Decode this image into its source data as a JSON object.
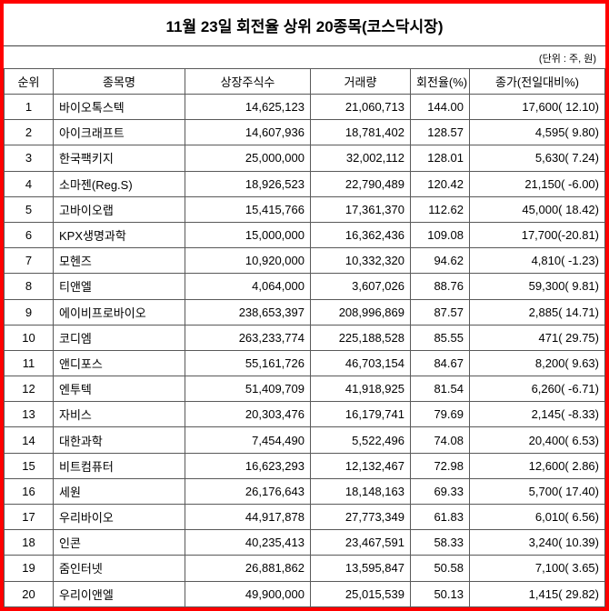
{
  "title": "11월 23일 회전율 상위 20종목(코스닥시장)",
  "unit_note": "(단위 : 주, 원)",
  "colors": {
    "frame_border": "#ff0000",
    "grid_line": "#595959",
    "text": "#000000",
    "background": "#ffffff"
  },
  "chart_data": {
    "type": "table",
    "title": "11월 23일 회전율 상위 20종목(코스닥시장)",
    "unit_note": "(단위 : 주, 원)",
    "columns": [
      "순위",
      "종목명",
      "상장주식수",
      "거래량",
      "회전율(%)",
      "종가(전일대비%)"
    ],
    "rows": [
      [
        "1",
        "바이오톡스텍",
        "14,625,123",
        "21,060,713",
        "144.00",
        "17,600( 12.10)"
      ],
      [
        "2",
        "아이크래프트",
        "14,607,936",
        "18,781,402",
        "128.57",
        "4,595( 9.80)"
      ],
      [
        "3",
        "한국팩키지",
        "25,000,000",
        "32,002,112",
        "128.01",
        "5,630( 7.24)"
      ],
      [
        "4",
        "소마젠(Reg.S)",
        "18,926,523",
        "22,790,489",
        "120.42",
        "21,150( -6.00)"
      ],
      [
        "5",
        "고바이오랩",
        "15,415,766",
        "17,361,370",
        "112.62",
        "45,000( 18.42)"
      ],
      [
        "6",
        "KPX생명과학",
        "15,000,000",
        "16,362,436",
        "109.08",
        "17,700(-20.81)"
      ],
      [
        "7",
        "모헨즈",
        "10,920,000",
        "10,332,320",
        "94.62",
        "4,810( -1.23)"
      ],
      [
        "8",
        "티앤엘",
        "4,064,000",
        "3,607,026",
        "88.76",
        "59,300( 9.81)"
      ],
      [
        "9",
        "에이비프로바이오",
        "238,653,397",
        "208,996,869",
        "87.57",
        "2,885( 14.71)"
      ],
      [
        "10",
        "코디엠",
        "263,233,774",
        "225,188,528",
        "85.55",
        "471( 29.75)"
      ],
      [
        "11",
        "앤디포스",
        "55,161,726",
        "46,703,154",
        "84.67",
        "8,200( 9.63)"
      ],
      [
        "12",
        "엔투텍",
        "51,409,709",
        "41,918,925",
        "81.54",
        "6,260( -6.71)"
      ],
      [
        "13",
        "자비스",
        "20,303,476",
        "16,179,741",
        "79.69",
        "2,145( -8.33)"
      ],
      [
        "14",
        "대한과학",
        "7,454,490",
        "5,522,496",
        "74.08",
        "20,400( 6.53)"
      ],
      [
        "15",
        "비트컴퓨터",
        "16,623,293",
        "12,132,467",
        "72.98",
        "12,600( 2.86)"
      ],
      [
        "16",
        "세원",
        "26,176,643",
        "18,148,163",
        "69.33",
        "5,700( 17.40)"
      ],
      [
        "17",
        "우리바이오",
        "44,917,878",
        "27,773,349",
        "61.83",
        "6,010( 6.56)"
      ],
      [
        "18",
        "인콘",
        "40,235,413",
        "23,467,591",
        "58.33",
        "3,240( 10.39)"
      ],
      [
        "19",
        "줌인터넷",
        "26,881,862",
        "13,595,847",
        "50.58",
        "7,100( 3.65)"
      ],
      [
        "20",
        "우리이앤엘",
        "49,900,000",
        "25,015,539",
        "50.13",
        "1,415( 29.82)"
      ]
    ]
  }
}
